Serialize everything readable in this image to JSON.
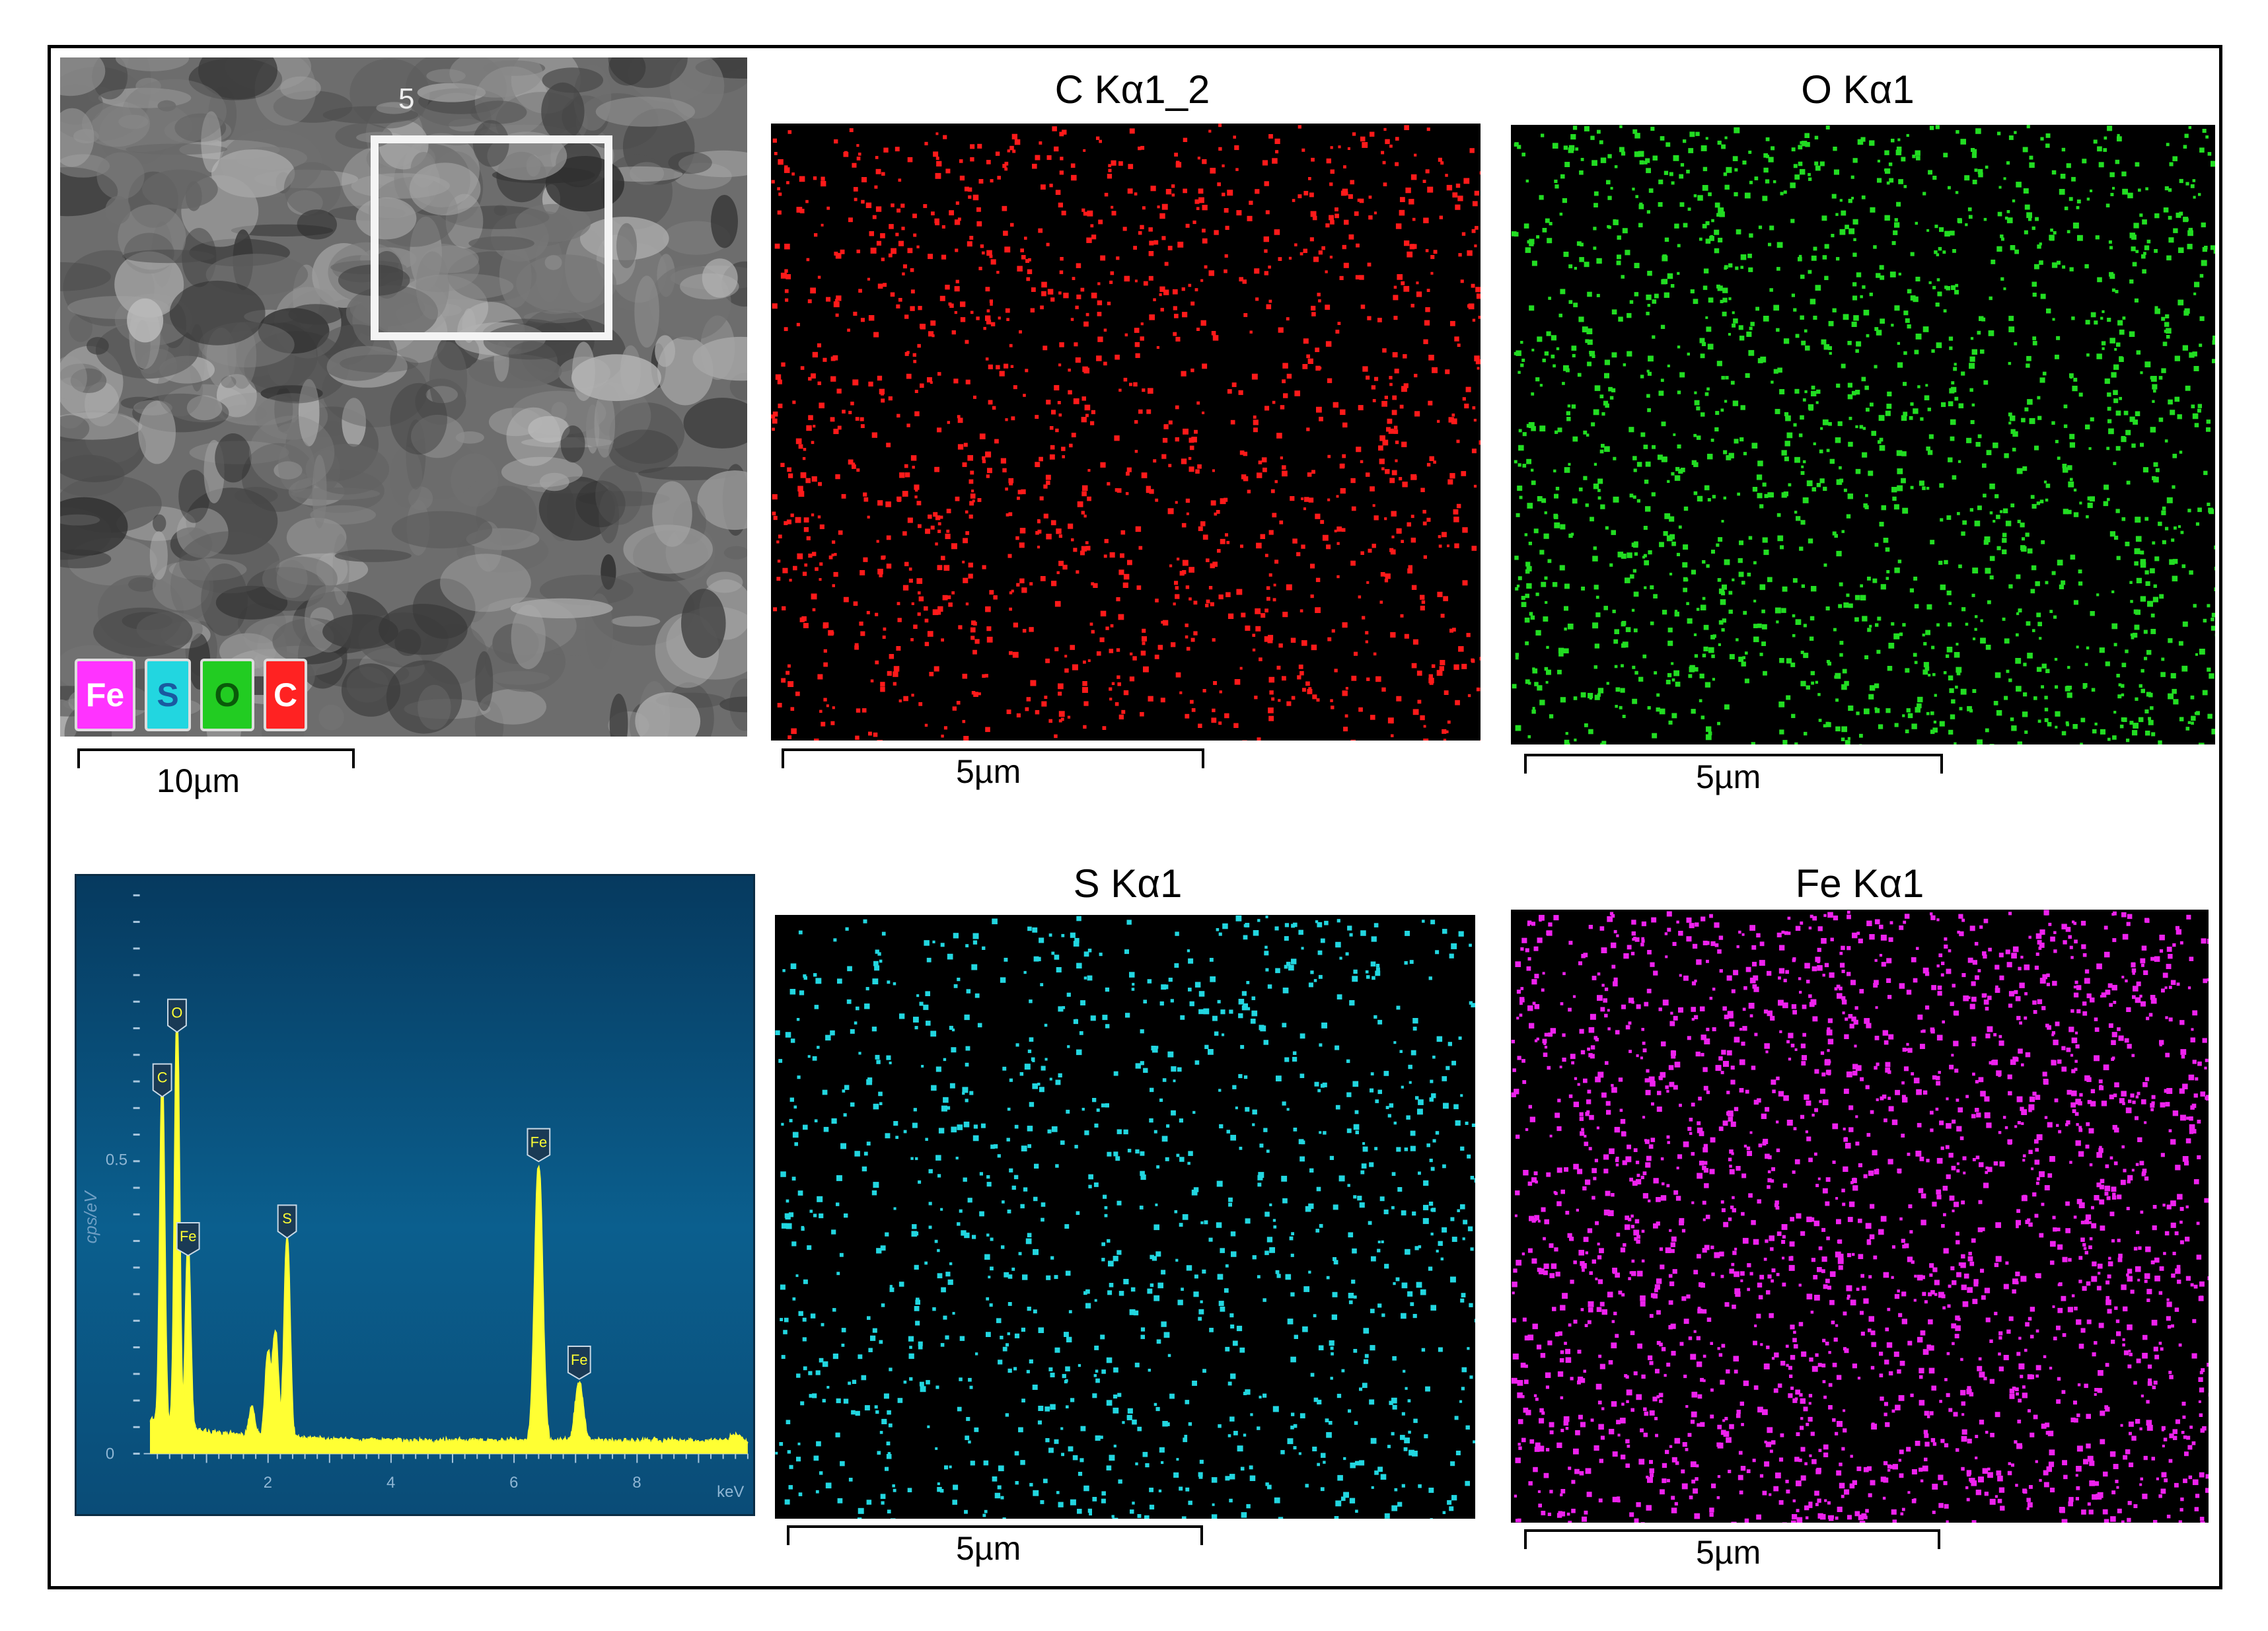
{
  "sem": {
    "roi_label": "5",
    "scale_label": "10µm",
    "legend": [
      {
        "label": "Fe",
        "bg": "#ff33ff",
        "fg": "#ffffff"
      },
      {
        "label": "S",
        "bg": "#22d6e0",
        "fg": "#1a5aa0"
      },
      {
        "label": "O",
        "bg": "#22cc22",
        "fg": "#0a5a0a"
      },
      {
        "label": "C",
        "bg": "#ff2222",
        "fg": "#ffffff"
      }
    ]
  },
  "maps": [
    {
      "id": "c",
      "title": "C Kα1_2",
      "color": "#ff1a1a",
      "scale_label": "5µm",
      "dots": 1450
    },
    {
      "id": "o",
      "title": "O Kα1",
      "color": "#22dd22",
      "scale_label": "5µm",
      "dots": 1750
    },
    {
      "id": "s",
      "title": "S Kα1",
      "color": "#22d6e0",
      "scale_label": "5µm",
      "dots": 1150
    },
    {
      "id": "fe",
      "title": "Fe Kα1",
      "color": "#ee22ee",
      "scale_label": "5µm",
      "dots": 2300
    }
  ],
  "spectrum": {
    "y_axis_label": "cps/eV",
    "x_unit": "keV",
    "y_ticks": [
      "0",
      "0.5"
    ],
    "x_ticks": [
      "2",
      "4",
      "6",
      "8"
    ],
    "line_color": "#ffff33",
    "peaks": [
      {
        "label": "C",
        "energy": 0.28,
        "height": 0.58
      },
      {
        "label": "O",
        "energy": 0.52,
        "height": 0.69
      },
      {
        "label": "Fe",
        "energy": 0.7,
        "height": 0.31
      },
      {
        "label": "S",
        "energy": 2.31,
        "height": 0.34
      },
      {
        "label": "Fe",
        "energy": 6.4,
        "height": 0.47
      },
      {
        "label": "Fe",
        "energy": 7.06,
        "height": 0.1
      }
    ]
  }
}
